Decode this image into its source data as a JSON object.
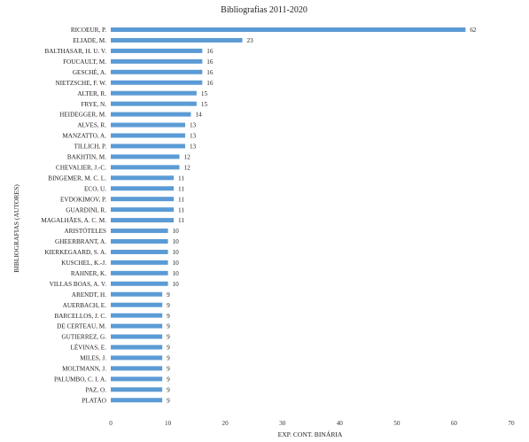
{
  "chart_data": {
    "type": "bar",
    "orientation": "horizontal",
    "title": "Bibliografias  2011-2020",
    "xlabel": "EXP. CONT. BINÁRIA",
    "ylabel": "BIBLIOGRAFIAS  (AUTORES)",
    "xlim": [
      0,
      70
    ],
    "xticks": [
      "0",
      "10",
      "20",
      "30",
      "40",
      "50",
      "60",
      "70"
    ],
    "grid": false,
    "bar_color": "#5b9bd5",
    "categories": [
      "RICOEUR, P.",
      "ELIADE, M.",
      "BALTHASAR, H. U. V.",
      "FOUCAULT, M.",
      "GESCHÉ, A.",
      "NIETZSCHE, F. W.",
      "ALTER, R.",
      "FRYE, N.",
      "HEIDEGGER, M.",
      "ALVES, R.",
      "MANZATTO, A.",
      "TILLICH, P.",
      "BAKHTIN, M.",
      "CHEVALIER, J.-C.",
      "BINGEMER, M. C. L.",
      "ECO, U.",
      "EVDOKIMOV, P.",
      "GUARDINI, R.",
      "MAGALHÃES, A. C. M.",
      "ARISTÓTELES",
      "GHEERBRANT, A.",
      "KIERKEGAARD, S. A.",
      "KUSCHEL, K.-J.",
      "RAHNER, K.",
      "VILLAS BOAS, A. V.",
      "ARENDT, H.",
      "AUERBACH, E.",
      "BARCELLOS, J. C.",
      "DE CERTEAU, M.",
      "GUTIERREZ, G.",
      "LÉVINAS, E.",
      "MILES, J.",
      "MOLTMANN, J.",
      "PALUMBO, C. I. A.",
      "PAZ, O.",
      "PLATÃO"
    ],
    "values": [
      62,
      23,
      16,
      16,
      16,
      16,
      15,
      15,
      14,
      13,
      13,
      13,
      12,
      12,
      11,
      11,
      11,
      11,
      11,
      10,
      10,
      10,
      10,
      10,
      10,
      9,
      9,
      9,
      9,
      9,
      9,
      9,
      9,
      9,
      9,
      9
    ],
    "value_labels": [
      "62",
      "23",
      "16",
      "16",
      "16",
      "16",
      "15",
      "15",
      "14",
      "13",
      "13",
      "13",
      "12",
      "12",
      "11",
      "11",
      "11",
      "11",
      "11",
      "10",
      "10",
      "10",
      "10",
      "10",
      "10",
      "9",
      "9",
      "9",
      "9",
      "9",
      "9",
      "9",
      "9",
      "9",
      "9",
      "9"
    ]
  }
}
